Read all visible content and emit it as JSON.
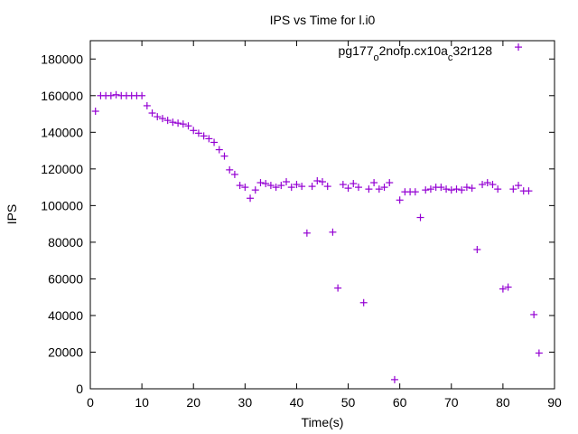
{
  "chart_data": {
    "type": "scatter",
    "title": "IPS vs Time for l.i0",
    "xlabel": "Time(s)",
    "ylabel": "IPS",
    "xlim": [
      0,
      90
    ],
    "ylim": [
      0,
      190000
    ],
    "x_ticks": [
      0,
      10,
      20,
      30,
      40,
      50,
      60,
      70,
      80,
      90
    ],
    "y_ticks": [
      0,
      20000,
      40000,
      60000,
      80000,
      100000,
      120000,
      140000,
      160000,
      180000
    ],
    "legend": {
      "placement": "top-right",
      "parts": [
        {
          "text": "pg177",
          "sub": false
        },
        {
          "text": "o",
          "sub": true
        },
        {
          "text": "2nofp.cx10a",
          "sub": false
        },
        {
          "text": "c",
          "sub": true
        },
        {
          "text": "32r128",
          "sub": false
        }
      ]
    },
    "marker": "+",
    "color": "#9400d3",
    "series": [
      {
        "name": "pg177_o2nofp.cx10a_c32r128",
        "points": [
          [
            1,
            151500
          ],
          [
            2,
            160000
          ],
          [
            3,
            160000
          ],
          [
            4,
            160000
          ],
          [
            5,
            160500
          ],
          [
            6,
            160000
          ],
          [
            7,
            160000
          ],
          [
            8,
            160000
          ],
          [
            9,
            160000
          ],
          [
            10,
            160000
          ],
          [
            11,
            154500
          ],
          [
            12,
            150500
          ],
          [
            13,
            148500
          ],
          [
            14,
            147500
          ],
          [
            15,
            146500
          ],
          [
            16,
            145500
          ],
          [
            17,
            145000
          ],
          [
            18,
            144500
          ],
          [
            19,
            143500
          ],
          [
            20,
            141000
          ],
          [
            21,
            139500
          ],
          [
            22,
            138000
          ],
          [
            23,
            136500
          ],
          [
            24,
            134500
          ],
          [
            25,
            130500
          ],
          [
            26,
            127000
          ],
          [
            27,
            119500
          ],
          [
            28,
            117000
          ],
          [
            29,
            111000
          ],
          [
            30,
            110000
          ],
          [
            31,
            104000
          ],
          [
            32,
            108500
          ],
          [
            33,
            112500
          ],
          [
            34,
            112000
          ],
          [
            35,
            111000
          ],
          [
            36,
            110000
          ],
          [
            37,
            111000
          ],
          [
            38,
            113000
          ],
          [
            39,
            110000
          ],
          [
            40,
            111500
          ],
          [
            41,
            110500
          ],
          [
            42,
            85000
          ],
          [
            43,
            110500
          ],
          [
            44,
            113500
          ],
          [
            45,
            113000
          ],
          [
            46,
            110500
          ],
          [
            47,
            85500
          ],
          [
            48,
            55000
          ],
          [
            49,
            111500
          ],
          [
            50,
            109500
          ],
          [
            51,
            112000
          ],
          [
            52,
            110000
          ],
          [
            53,
            47000
          ],
          [
            54,
            109000
          ],
          [
            55,
            112500
          ],
          [
            56,
            109000
          ],
          [
            57,
            110000
          ],
          [
            58,
            112500
          ],
          [
            59,
            5000
          ],
          [
            60,
            103000
          ],
          [
            61,
            107500
          ],
          [
            62,
            107500
          ],
          [
            63,
            107500
          ],
          [
            64,
            93500
          ],
          [
            65,
            108500
          ],
          [
            66,
            109000
          ],
          [
            67,
            110000
          ],
          [
            68,
            110000
          ],
          [
            69,
            109000
          ],
          [
            70,
            108500
          ],
          [
            71,
            109000
          ],
          [
            72,
            108500
          ],
          [
            73,
            110000
          ],
          [
            74,
            109500
          ],
          [
            75,
            76000
          ],
          [
            76,
            111500
          ],
          [
            77,
            112500
          ],
          [
            78,
            111500
          ],
          [
            79,
            109000
          ],
          [
            80,
            54500
          ],
          [
            81,
            55500
          ],
          [
            82,
            109000
          ],
          [
            83,
            111000
          ],
          [
            84,
            108000
          ],
          [
            85,
            108000
          ],
          [
            86,
            40500
          ],
          [
            87,
            19500
          ]
        ]
      }
    ],
    "outliers": [
      [
        83,
        186500
      ]
    ]
  }
}
